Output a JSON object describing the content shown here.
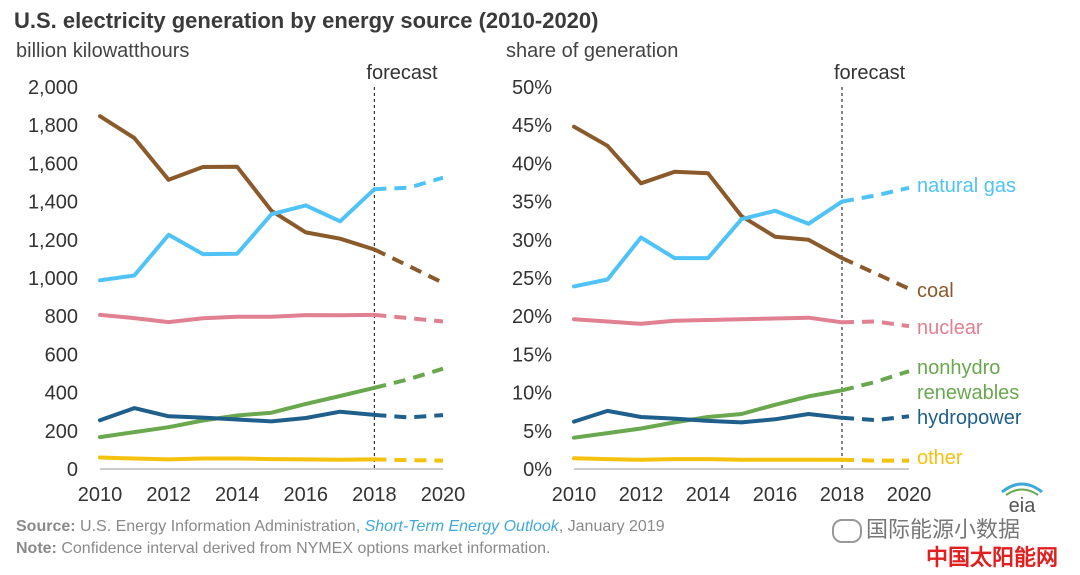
{
  "title": "U.S. electricity generation by energy source  (2010-2020)",
  "chart_data": [
    {
      "type": "line",
      "ylabel": "billion kilowatthours",
      "forecast_label": "forecast",
      "forecast_start": 2018,
      "xlim": [
        2010,
        2020
      ],
      "ylim": [
        0,
        2000
      ],
      "x_ticks": [
        "2010",
        "2012",
        "2014",
        "2016",
        "2018",
        "2020"
      ],
      "y_ticks": [
        "0",
        "200",
        "400",
        "600",
        "800",
        "1,000",
        "1,200",
        "1,400",
        "1,600",
        "1,800",
        "2,000"
      ],
      "x": [
        2010,
        2011,
        2012,
        2013,
        2014,
        2015,
        2016,
        2017,
        2018,
        2019,
        2020
      ],
      "series": [
        {
          "key": "coal",
          "color": "#8b5a2b",
          "values": [
            1847,
            1733,
            1514,
            1581,
            1582,
            1352,
            1239,
            1206,
            1149,
            1063,
            975
          ]
        },
        {
          "key": "natural_gas",
          "color": "#4fc3f7",
          "values": [
            988,
            1013,
            1226,
            1125,
            1127,
            1334,
            1380,
            1297,
            1465,
            1473,
            1525
          ]
        },
        {
          "key": "nuclear",
          "color": "#e08090",
          "values": [
            807,
            790,
            769,
            789,
            797,
            797,
            806,
            805,
            807,
            790,
            772
          ]
        },
        {
          "key": "nonhydro_renewables",
          "color": "#6aa84f",
          "values": [
            167,
            193,
            219,
            254,
            280,
            295,
            341,
            382,
            425,
            470,
            525
          ]
        },
        {
          "key": "hydropower",
          "color": "#1f5f8b",
          "values": [
            255,
            319,
            276,
            269,
            259,
            249,
            267,
            300,
            283,
            270,
            282
          ]
        },
        {
          "key": "other",
          "color": "#f4c20d",
          "values": [
            60,
            55,
            50,
            55,
            55,
            52,
            50,
            48,
            50,
            46,
            44
          ]
        }
      ]
    },
    {
      "type": "line",
      "ylabel": "share of generation",
      "forecast_label": "forecast",
      "forecast_start": 2018,
      "xlim": [
        2010,
        2020
      ],
      "ylim": [
        0,
        50
      ],
      "x_ticks": [
        "2010",
        "2012",
        "2014",
        "2016",
        "2018",
        "2020"
      ],
      "y_ticks": [
        "0%",
        "5%",
        "10%",
        "15%",
        "20%",
        "25%",
        "30%",
        "35%",
        "40%",
        "45%",
        "50%"
      ],
      "x": [
        2010,
        2011,
        2012,
        2013,
        2014,
        2015,
        2016,
        2017,
        2018,
        2019,
        2020
      ],
      "series": [
        {
          "key": "coal",
          "name": "coal",
          "color": "#8b5a2b",
          "values": [
            44.8,
            42.3,
            37.4,
            38.9,
            38.7,
            33.1,
            30.4,
            30.0,
            27.6,
            25.6,
            23.6
          ]
        },
        {
          "key": "natural_gas",
          "name": "natural gas",
          "color": "#4fc3f7",
          "values": [
            23.9,
            24.8,
            30.3,
            27.6,
            27.6,
            32.7,
            33.8,
            32.1,
            35.0,
            35.8,
            36.8
          ]
        },
        {
          "key": "nuclear",
          "name": "nuclear",
          "color": "#e08090",
          "values": [
            19.6,
            19.3,
            19.0,
            19.4,
            19.5,
            19.6,
            19.7,
            19.8,
            19.2,
            19.3,
            18.7
          ]
        },
        {
          "key": "nonhydro_renewables",
          "name": "nonhydro renewables",
          "color": "#6aa84f",
          "values": [
            4.1,
            4.7,
            5.3,
            6.1,
            6.8,
            7.2,
            8.4,
            9.5,
            10.3,
            11.4,
            12.8
          ]
        },
        {
          "key": "hydropower",
          "name": "hydropower",
          "color": "#1f5f8b",
          "values": [
            6.2,
            7.6,
            6.8,
            6.6,
            6.3,
            6.1,
            6.5,
            7.2,
            6.7,
            6.4,
            6.9
          ]
        },
        {
          "key": "other",
          "name": "other",
          "color": "#f4c20d",
          "values": [
            1.4,
            1.3,
            1.2,
            1.3,
            1.3,
            1.2,
            1.2,
            1.2,
            1.2,
            1.1,
            1.1
          ]
        }
      ]
    }
  ],
  "legend": [
    {
      "key": "natural_gas",
      "lines": [
        "natural gas"
      ]
    },
    {
      "key": "coal",
      "lines": [
        "coal"
      ]
    },
    {
      "key": "nuclear",
      "lines": [
        "nuclear"
      ]
    },
    {
      "key": "nonhydro_renewables",
      "lines": [
        "nonhydro",
        "renewables"
      ]
    },
    {
      "key": "hydropower",
      "lines": [
        "hydropower"
      ]
    },
    {
      "key": "other",
      "lines": [
        "other"
      ]
    }
  ],
  "footer": {
    "source_label": "Source:",
    "source_text": " U.S. Energy Information Administration, ",
    "source_link": "Short-Term Energy Outlook",
    "source_date": ", January 2019",
    "note_label": "Note:",
    "note_text": " Confidence interval derived from NYMEX options market information."
  },
  "logo_text": "eia",
  "watermark_1": "国际能源小数据",
  "watermark_2": "中国太阳能网"
}
